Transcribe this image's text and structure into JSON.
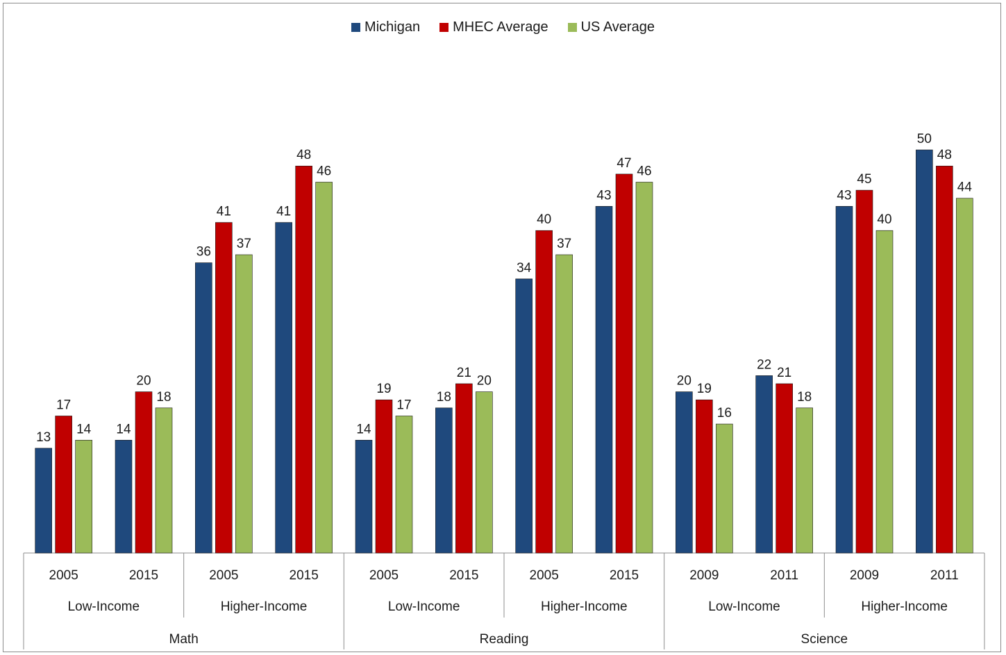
{
  "chart_data": {
    "type": "bar",
    "title": "",
    "legend_position": "top-center",
    "series": [
      {
        "name": "Michigan",
        "color": "#1f497d"
      },
      {
        "name": "MHEC Average",
        "color": "#c00000"
      },
      {
        "name": "US Average",
        "color": "#9bbb59"
      }
    ],
    "groups": [
      {
        "subject": "Math",
        "income": [
          {
            "label": "Low-Income",
            "years": [
              {
                "year": "2005",
                "values": [
                  13,
                  17,
                  14
                ]
              },
              {
                "year": "2015",
                "values": [
                  14,
                  20,
                  18
                ]
              }
            ]
          },
          {
            "label": "Higher-Income",
            "years": [
              {
                "year": "2005",
                "values": [
                  36,
                  41,
                  37
                ]
              },
              {
                "year": "2015",
                "values": [
                  41,
                  48,
                  46
                ]
              }
            ]
          }
        ]
      },
      {
        "subject": "Reading",
        "income": [
          {
            "label": "Low-Income",
            "years": [
              {
                "year": "2005",
                "values": [
                  14,
                  19,
                  17
                ]
              },
              {
                "year": "2015",
                "values": [
                  18,
                  21,
                  20
                ]
              }
            ]
          },
          {
            "label": "Higher-Income",
            "years": [
              {
                "year": "2005",
                "values": [
                  34,
                  40,
                  37
                ]
              },
              {
                "year": "2015",
                "values": [
                  43,
                  47,
                  46
                ]
              }
            ]
          }
        ]
      },
      {
        "subject": "Science",
        "income": [
          {
            "label": "Low-Income",
            "years": [
              {
                "year": "2009",
                "values": [
                  20,
                  19,
                  16
                ]
              },
              {
                "year": "2011",
                "values": [
                  22,
                  21,
                  18
                ]
              }
            ]
          },
          {
            "label": "Higher-Income",
            "years": [
              {
                "year": "2009",
                "values": [
                  43,
                  45,
                  40
                ]
              },
              {
                "year": "2011",
                "values": [
                  50,
                  48,
                  44
                ]
              }
            ]
          }
        ]
      }
    ],
    "ylim": [
      0,
      55
    ],
    "grid": false
  }
}
